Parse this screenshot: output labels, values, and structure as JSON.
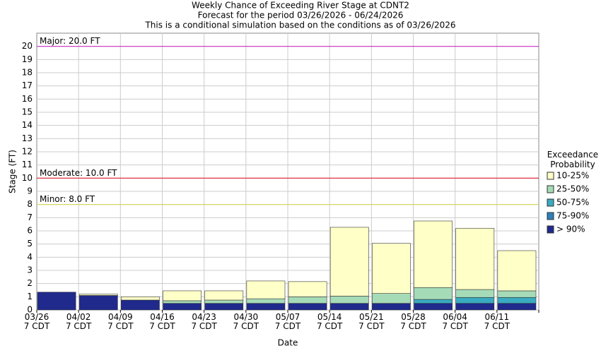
{
  "chart_data": {
    "type": "bar",
    "stacked": true,
    "title": "Weekly Chance of Exceeding River Stage at CDNT2",
    "subtitle": "Forecast for the period 03/26/2026 - 06/24/2026",
    "note": "This is a conditional simulation based on the conditions as of 03/26/2026",
    "x_label": "Date",
    "y_label": "Stage (FT)",
    "legend_title": "Exceedance Probability",
    "categories": [
      "03/26 7 CDT",
      "04/02 7 CDT",
      "04/09 7 CDT",
      "04/16 7 CDT",
      "04/23 7 CDT",
      "04/30 7 CDT",
      "05/07 7 CDT",
      "05/14 7 CDT",
      "05/21 7 CDT",
      "05/28 7 CDT",
      "06/04 7 CDT",
      "06/11 7 CDT"
    ],
    "series": [
      {
        "name": "> 90%",
        "color": "#1f2a8c",
        "values": [
          1.35,
          1.1,
          0.75,
          0.5,
          0.5,
          0.5,
          0.5,
          0.5,
          0.5,
          0.5,
          0.5,
          0.5
        ]
      },
      {
        "name": "75-90%",
        "color": "#2e7fb8",
        "values": [
          0,
          0,
          0,
          0,
          0,
          0,
          0,
          0,
          0,
          0,
          0,
          0
        ]
      },
      {
        "name": "50-75%",
        "color": "#3aabc0",
        "values": [
          0,
          0,
          0,
          0,
          0,
          0,
          0,
          0,
          0,
          0.3,
          0.45,
          0.45
        ]
      },
      {
        "name": "25-50%",
        "color": "#a6dbb8",
        "values": [
          0,
          0,
          0,
          0.2,
          0.25,
          0.35,
          0.5,
          0.55,
          0.75,
          0.9,
          0.6,
          0.5
        ]
      },
      {
        "name": "10-25%",
        "color": "#ffffc8",
        "values": [
          0,
          0.1,
          0.25,
          0.75,
          0.7,
          1.35,
          1.15,
          5.22,
          3.8,
          5.05,
          4.65,
          3.05
        ]
      }
    ],
    "thresholds": [
      {
        "label": "Major: 20.0 FT",
        "value": 20,
        "color": "#cc33cc"
      },
      {
        "label": "Moderate: 10.0 FT",
        "value": 10,
        "color": "#dd2233"
      },
      {
        "label": "Minor: 8.0 FT",
        "value": 8,
        "color": "#d8d85a"
      }
    ],
    "ylim": [
      0,
      21
    ],
    "yticks": [
      0,
      1,
      2,
      3,
      4,
      5,
      6,
      7,
      8,
      9,
      10,
      11,
      12,
      13,
      14,
      15,
      16,
      17,
      18,
      19,
      20
    ],
    "grid": true
  }
}
